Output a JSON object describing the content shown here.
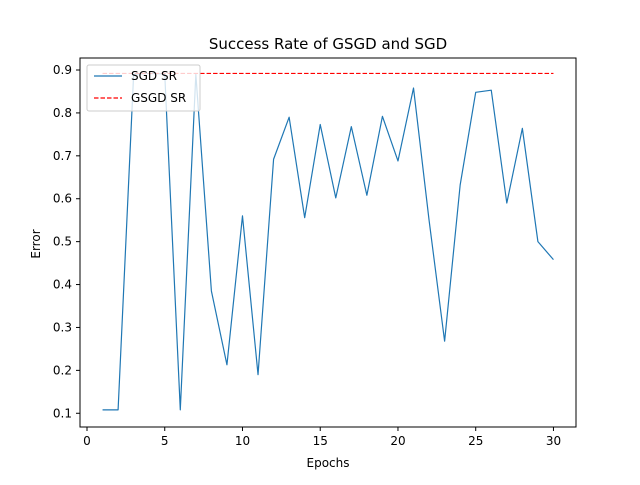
{
  "chart_data": {
    "type": "line",
    "title": "Success Rate of GSGD and SGD",
    "xlabel": "Epochs",
    "ylabel": "Error",
    "xlim": [
      -0.45,
      31.45
    ],
    "ylim": [
      0.068,
      0.928
    ],
    "xticks": [
      0,
      5,
      10,
      15,
      20,
      25,
      30
    ],
    "yticks": [
      0.1,
      0.2,
      0.3,
      0.4,
      0.5,
      0.6,
      0.7,
      0.8,
      0.9
    ],
    "xtick_labels": [
      "0",
      "5",
      "10",
      "15",
      "20",
      "25",
      "30"
    ],
    "ytick_labels": [
      "0.1",
      "0.2",
      "0.3",
      "0.4",
      "0.5",
      "0.6",
      "0.7",
      "0.8",
      "0.9"
    ],
    "grid": false,
    "legend_position": "upper left",
    "series": [
      {
        "name": "SGD SR",
        "color": "#1f77b4",
        "style": "solid",
        "x": [
          1,
          2,
          3,
          4,
          5,
          6,
          7,
          8,
          9,
          10,
          11,
          12,
          13,
          14,
          15,
          16,
          17,
          18,
          19,
          20,
          21,
          22,
          23,
          24,
          25,
          26,
          27,
          28,
          29,
          30
        ],
        "values": [
          0.108,
          0.108,
          0.89,
          0.892,
          0.891,
          0.108,
          0.89,
          0.385,
          0.213,
          0.56,
          0.19,
          0.692,
          0.79,
          0.556,
          0.773,
          0.602,
          0.768,
          0.608,
          0.792,
          0.688,
          0.858,
          0.55,
          0.268,
          0.632,
          0.848,
          0.853,
          0.59,
          0.764,
          0.5,
          0.458
        ]
      },
      {
        "name": "GSGD SR",
        "color": "#ff0000",
        "style": "dashed",
        "x": [
          1,
          30
        ],
        "values": [
          0.892,
          0.892
        ]
      }
    ]
  }
}
